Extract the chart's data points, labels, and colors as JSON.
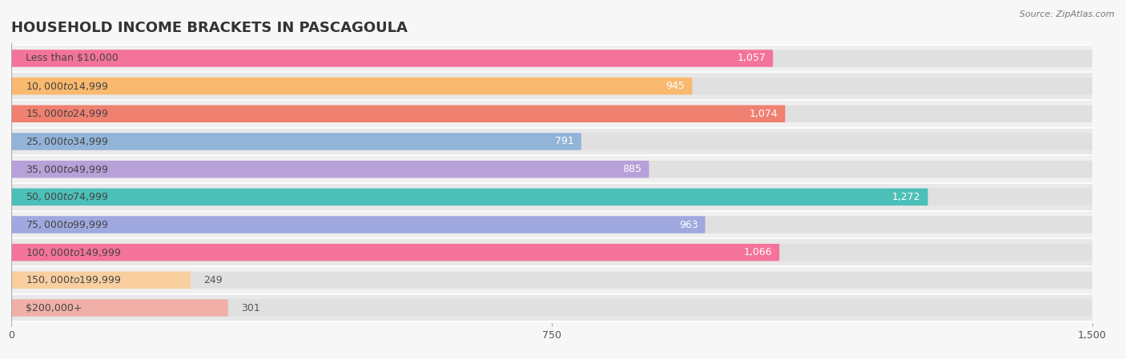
{
  "title": "HOUSEHOLD INCOME BRACKETS IN PASCAGOULA",
  "source": "Source: ZipAtlas.com",
  "categories": [
    "Less than $10,000",
    "$10,000 to $14,999",
    "$15,000 to $24,999",
    "$25,000 to $34,999",
    "$35,000 to $49,999",
    "$50,000 to $74,999",
    "$75,000 to $99,999",
    "$100,000 to $149,999",
    "$150,000 to $199,999",
    "$200,000+"
  ],
  "values": [
    1057,
    945,
    1074,
    791,
    885,
    1272,
    963,
    1066,
    249,
    301
  ],
  "bar_colors": [
    "#f4739a",
    "#f9b96e",
    "#f08070",
    "#92b4d8",
    "#b8a0d8",
    "#4bbfb8",
    "#a0a8e0",
    "#f4739a",
    "#f9cfa0",
    "#f0b0a8"
  ],
  "xlim": [
    0,
    1500
  ],
  "xticks": [
    0,
    750,
    1500
  ],
  "bg_color": "#f7f7f7",
  "row_color_even": "#f0f0f0",
  "row_color_odd": "#e8e8e8",
  "bar_bg_color": "#e0e0e0",
  "title_fontsize": 13,
  "label_fontsize": 9,
  "value_fontsize": 9,
  "bar_height": 0.62,
  "value_threshold": 500
}
